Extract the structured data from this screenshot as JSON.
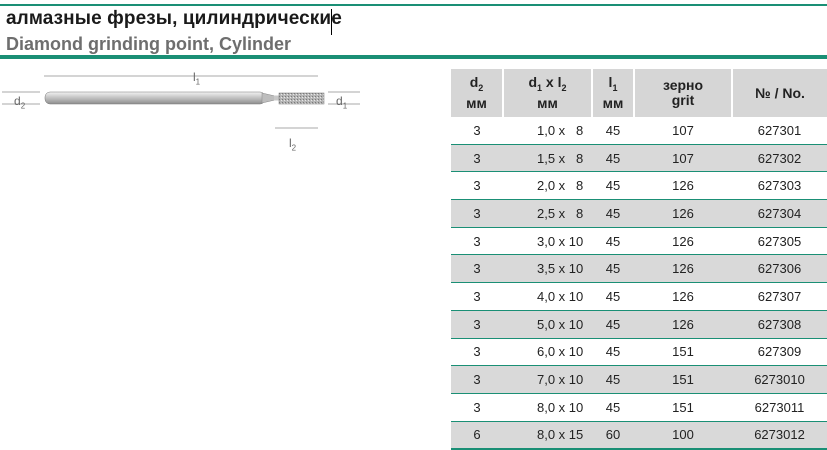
{
  "title": {
    "ru": "алмазные фрезы, цилиндрические",
    "en": "Diamond grinding point, Cylinder"
  },
  "drawing": {
    "l1": "l",
    "l1_sub": "1",
    "l2": "l",
    "l2_sub": "2",
    "d1": "d",
    "d1_sub": "1",
    "d2": "d",
    "d2_sub": "2"
  },
  "table": {
    "headers": {
      "d2": "d",
      "d2_sub": "2",
      "d2_unit": "мм",
      "d1l2_a": "d",
      "d1l2_a_sub": "1",
      "d1l2_x": " x l",
      "d1l2_b_sub": "2",
      "d1l2_unit": "мм",
      "l1": "l",
      "l1_sub": "1",
      "l1_unit": "мм",
      "grit_ru": "зерно",
      "grit_en": "grit",
      "no": "№ / No."
    },
    "rows": [
      {
        "d2": "3",
        "d1l2": "1,0 x   8",
        "l1": "45",
        "grit": "107",
        "no": "627301"
      },
      {
        "d2": "3",
        "d1l2": "1,5 x   8",
        "l1": "45",
        "grit": "107",
        "no": "627302"
      },
      {
        "d2": "3",
        "d1l2": "2,0 x   8",
        "l1": "45",
        "grit": "126",
        "no": "627303"
      },
      {
        "d2": "3",
        "d1l2": "2,5 x   8",
        "l1": "45",
        "grit": "126",
        "no": "627304"
      },
      {
        "d2": "3",
        "d1l2": "3,0 x 10",
        "l1": "45",
        "grit": "126",
        "no": "627305"
      },
      {
        "d2": "3",
        "d1l2": "3,5 x 10",
        "l1": "45",
        "grit": "126",
        "no": "627306"
      },
      {
        "d2": "3",
        "d1l2": "4,0 x 10",
        "l1": "45",
        "grit": "126",
        "no": "627307"
      },
      {
        "d2": "3",
        "d1l2": "5,0 x 10",
        "l1": "45",
        "grit": "126",
        "no": "627308"
      },
      {
        "d2": "3",
        "d1l2": "6,0 x 10",
        "l1": "45",
        "grit": "151",
        "no": "627309"
      },
      {
        "d2": "3",
        "d1l2": "7,0 x 10",
        "l1": "45",
        "grit": "151",
        "no": "6273010"
      },
      {
        "d2": "3",
        "d1l2": "8,0 x 10",
        "l1": "45",
        "grit": "151",
        "no": "6273011"
      },
      {
        "d2": "6",
        "d1l2": "8,0 x 15",
        "l1": "60",
        "grit": "100",
        "no": "6273012"
      }
    ]
  },
  "colors": {
    "accent": "#1a8f75",
    "header_bg": "#d6d6d6",
    "shade": "#d9d9d9"
  }
}
